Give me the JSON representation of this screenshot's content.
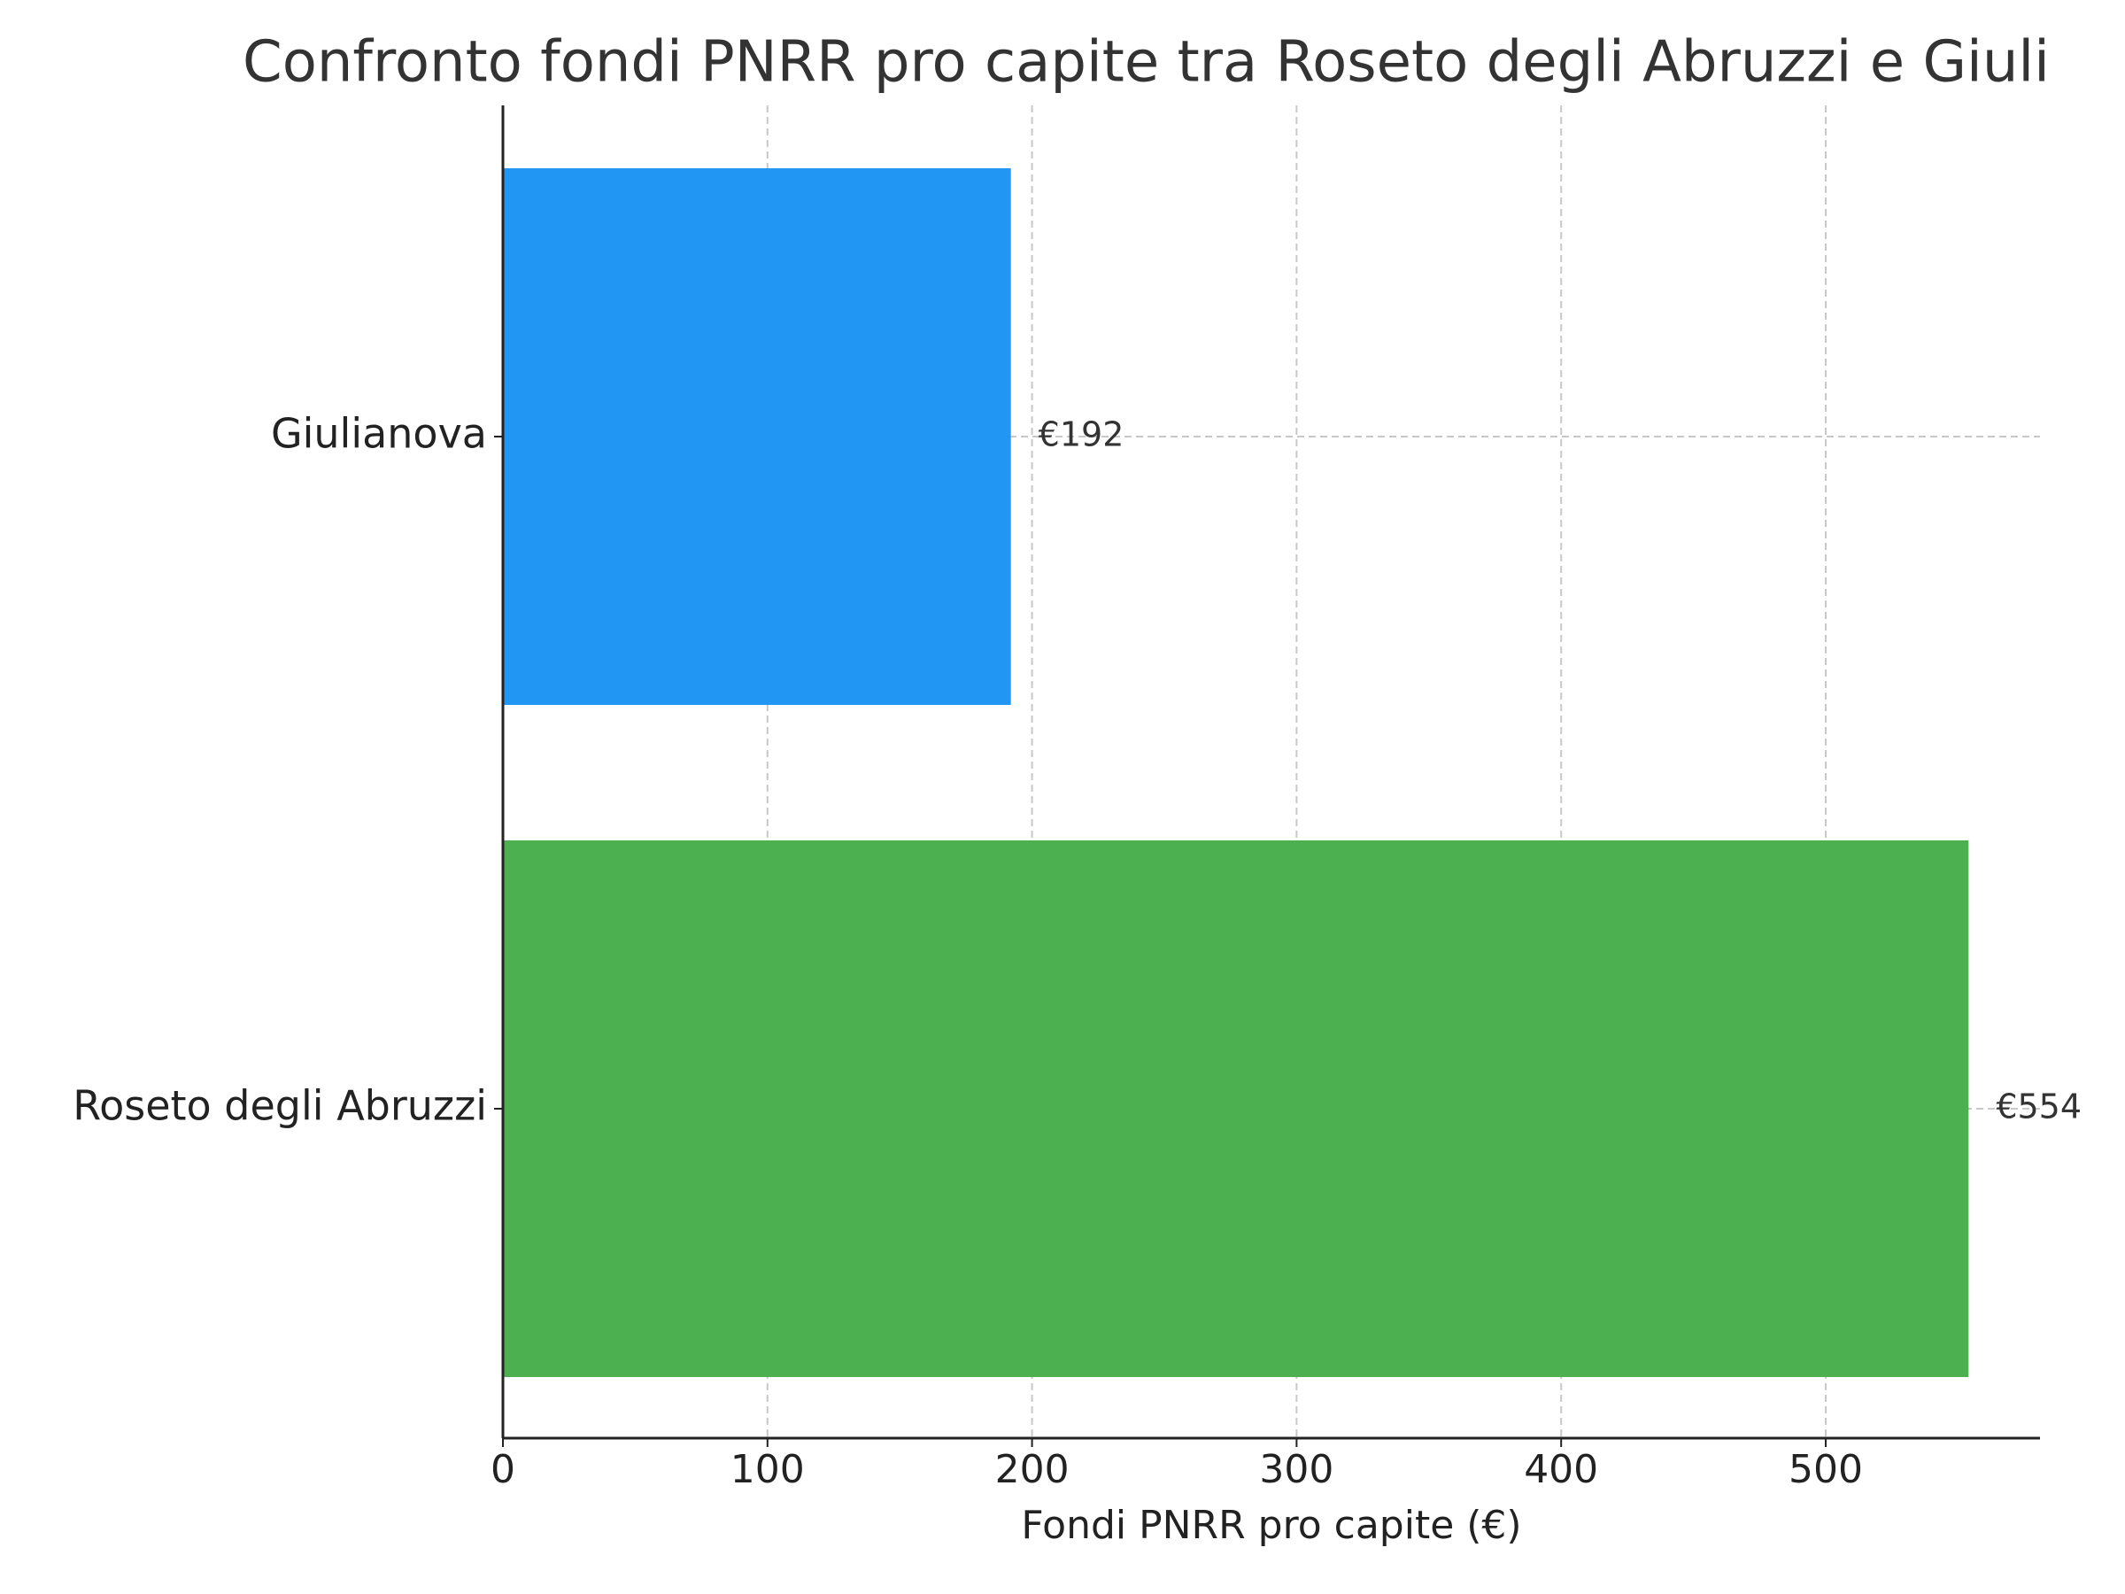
{
  "chart_data": {
    "type": "barh",
    "title": "Confronto fondi PNRR pro capite tra Roseto degli Abruzzi e Giuli",
    "xlabel": "Fondi PNRR pro capite (€)",
    "categories": [
      "Roseto degli Abruzzi",
      "Giulianova"
    ],
    "values": [
      554,
      192
    ],
    "value_labels": [
      "€554",
      "€192"
    ],
    "colors": [
      "#4caf50",
      "#2196f3"
    ],
    "xlim": [
      0,
      581
    ],
    "xticks": [
      0,
      100,
      200,
      300,
      400,
      500
    ],
    "grid": true
  }
}
